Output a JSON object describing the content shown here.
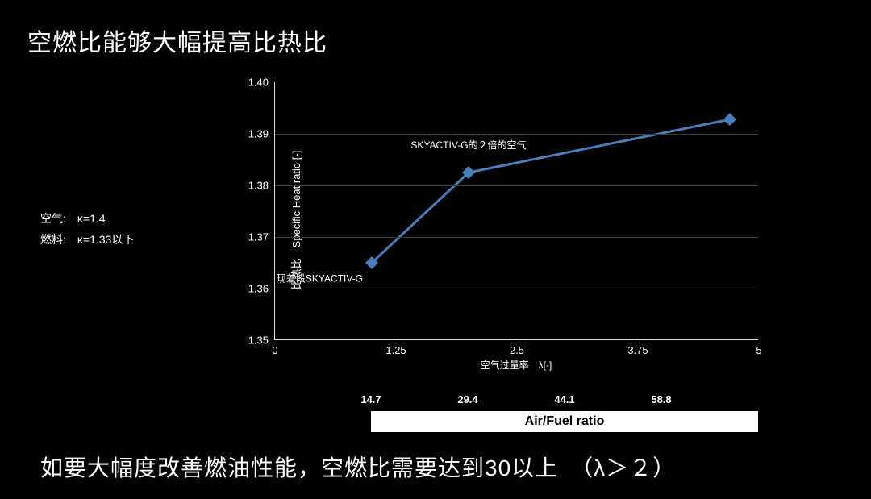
{
  "title": "空燃比能够大幅提高比热比",
  "side_note": {
    "line1": "空气:　κ=1.4",
    "line2": "燃料:　κ=1.33以下"
  },
  "bottom_text": "如要大幅度改善燃油性能，空燃比需要达到30以上　（λ＞２）",
  "chart": {
    "type": "line",
    "y_label": "比热比　Specific Heat ratio [-]",
    "x_label": "空气过量率　λ[-]",
    "xlim": [
      0,
      5
    ],
    "ylim": [
      1.35,
      1.4
    ],
    "x_ticks": [
      0,
      1.25,
      2.5,
      3.75,
      5
    ],
    "y_ticks": [
      1.35,
      1.36,
      1.37,
      1.38,
      1.39,
      1.4
    ],
    "y_tick_labels": [
      "1.35",
      "1.36",
      "1.37",
      "1.38",
      "1.39",
      "1.40"
    ],
    "grid_color": "#3a3a3a",
    "axis_color": "#e0e0e0",
    "background_color": "#000000",
    "series": {
      "color": "#4a7ebb",
      "line_width": 3,
      "marker_size": 8,
      "marker_shape": "diamond",
      "points": [
        {
          "x": 1.0,
          "y": 1.365
        },
        {
          "x": 2.0,
          "y": 1.3825
        },
        {
          "x": 4.7,
          "y": 1.3928
        }
      ]
    },
    "annotations": [
      {
        "text": "现差段SKYACTIV-G",
        "at_x": 1.0,
        "at_y": 1.362,
        "anchor": "right"
      },
      {
        "text": "SKYACTIV-G的２倍的空气",
        "at_x": 2.0,
        "at_y": 1.3865,
        "anchor": "center"
      }
    ],
    "secondary_x": {
      "label": "Air/Fuel ratio",
      "ticks": [
        {
          "at_x": 1.0,
          "label": "14.7"
        },
        {
          "at_x": 2.0,
          "label": "29.4"
        },
        {
          "at_x": 3.0,
          "label": "44.1"
        },
        {
          "at_x": 4.0,
          "label": "58.8"
        }
      ],
      "label_box": {
        "from_x": 1.0,
        "to_x": 5.0,
        "bg": "#ffffff",
        "fg": "#000000"
      }
    }
  }
}
